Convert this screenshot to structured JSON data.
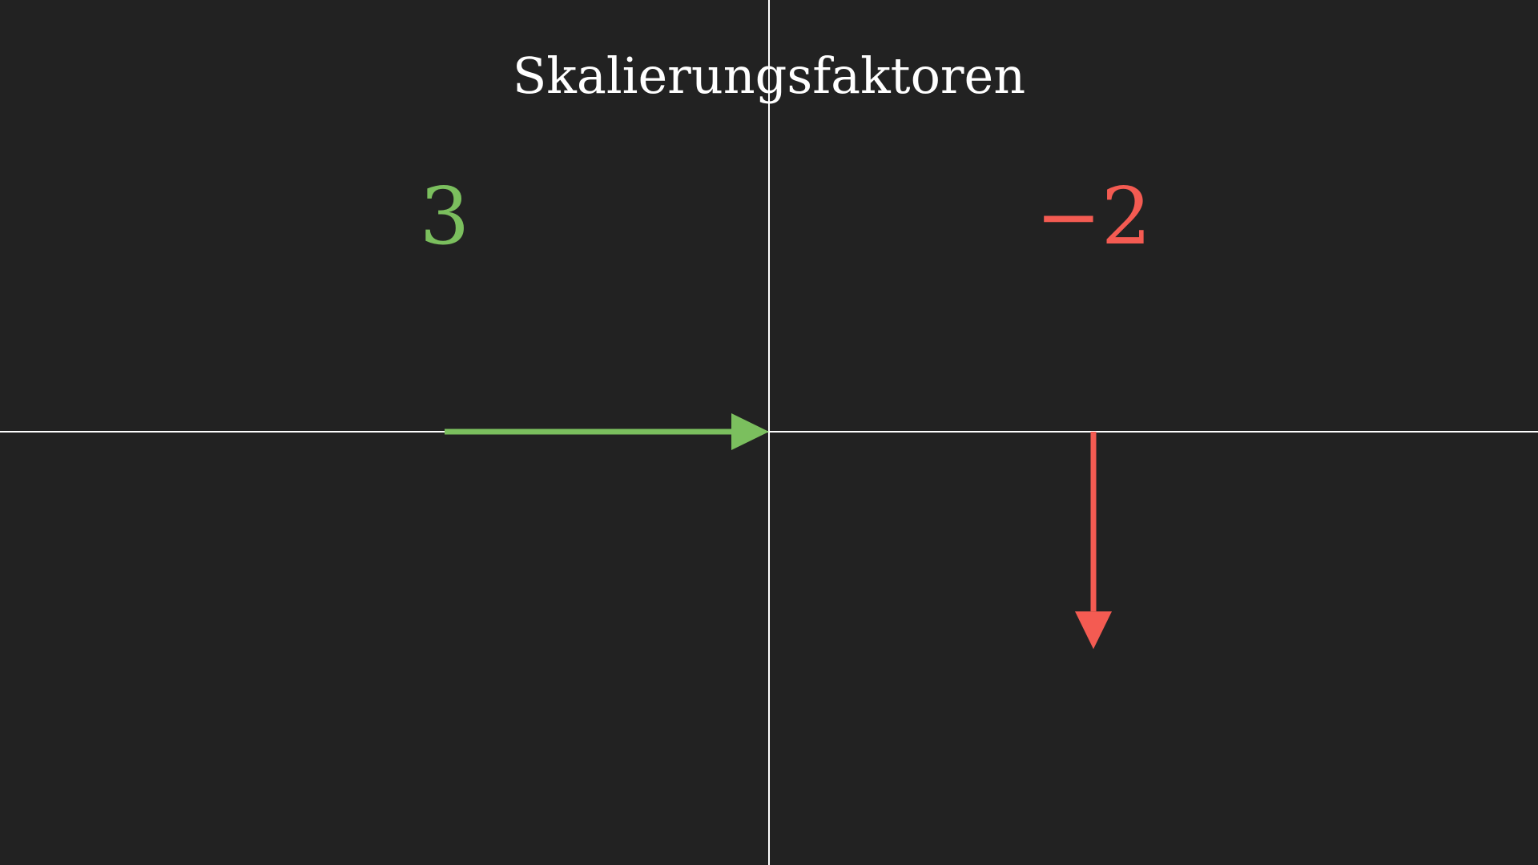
{
  "title": "Skalierungsfaktoren",
  "factors": {
    "left": {
      "label": "3",
      "color": "#7bbf5e"
    },
    "right": {
      "label": "−2",
      "color": "#f45b52"
    }
  },
  "colors": {
    "background": "#222222",
    "axes": "#ffffff"
  },
  "vectors": [
    {
      "name": "green-arrow",
      "from": [
        -1,
        0
      ],
      "to": [
        0,
        0
      ],
      "color": "#7bbf5e"
    },
    {
      "name": "red-arrow",
      "from": [
        1,
        0
      ],
      "to": [
        1,
        -0.67
      ],
      "color": "#f45b52"
    }
  ]
}
